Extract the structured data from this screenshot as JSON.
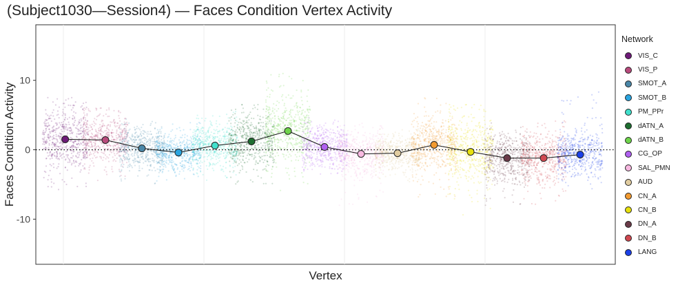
{
  "title": "(Subject1030—Session4) — Faces Condition Vertex Activity",
  "chart_data": {
    "type": "scatter",
    "xlabel": "Vertex",
    "ylabel": "Faces Condition Activity",
    "ylim": [
      -16.5,
      18
    ],
    "yticks": [
      -10,
      0,
      10
    ],
    "grid": true,
    "legend_title": "Network",
    "legend_position": "right",
    "reference_line": 0,
    "series": [
      {
        "name": "VIS_C",
        "color": "#6e1a78",
        "mean": 1.5,
        "spread": 2.2,
        "peak": 7.5,
        "low": -6
      },
      {
        "name": "VIS_P",
        "color": "#b84a7c",
        "mean": 1.4,
        "spread": 1.8,
        "peak": 6,
        "low": -4.5
      },
      {
        "name": "SMOT_A",
        "color": "#4a87a8",
        "mean": 0.2,
        "spread": 1.5,
        "peak": 5,
        "low": -5
      },
      {
        "name": "SMOT_B",
        "color": "#2aa5e0",
        "mean": -0.4,
        "spread": 1.3,
        "peak": 4.5,
        "low": -4.5
      },
      {
        "name": "PM_PPr",
        "color": "#40e0cc",
        "mean": 0.6,
        "spread": 1.5,
        "peak": 5.5,
        "low": -4.5
      },
      {
        "name": "dATN_A",
        "color": "#1e6e30",
        "mean": 1.2,
        "spread": 2.0,
        "peak": 6.5,
        "low": -5.5
      },
      {
        "name": "dATN_B",
        "color": "#6ed44a",
        "mean": 2.7,
        "spread": 2.5,
        "peak": 11,
        "low": -6
      },
      {
        "name": "CG_OP",
        "color": "#b060f0",
        "mean": 0.4,
        "spread": 1.5,
        "peak": 5,
        "low": -3.5
      },
      {
        "name": "SAL_PMN",
        "color": "#f7b8e0",
        "mean": -0.6,
        "spread": 1.6,
        "peak": 4,
        "low": -8
      },
      {
        "name": "AUD",
        "color": "#e0cca0",
        "mean": -0.5,
        "spread": 1.2,
        "peak": 3,
        "low": -5
      },
      {
        "name": "CN_A",
        "color": "#f29a30",
        "mean": 0.7,
        "spread": 2.0,
        "peak": 7.5,
        "low": -7.5
      },
      {
        "name": "CN_B",
        "color": "#e6e00e",
        "mean": -0.3,
        "spread": 2.6,
        "peak": 6.5,
        "low": -9.5
      },
      {
        "name": "DN_A",
        "color": "#6a3a48",
        "mean": -1.2,
        "spread": 1.8,
        "peak": 4,
        "low": -8
      },
      {
        "name": "DN_B",
        "color": "#d04850",
        "mean": -1.2,
        "spread": 1.8,
        "peak": 5,
        "low": -8
      },
      {
        "name": "LANG",
        "color": "#1a40e8",
        "mean": -0.7,
        "spread": 1.6,
        "peak": 8.5,
        "low": -6
      }
    ]
  }
}
